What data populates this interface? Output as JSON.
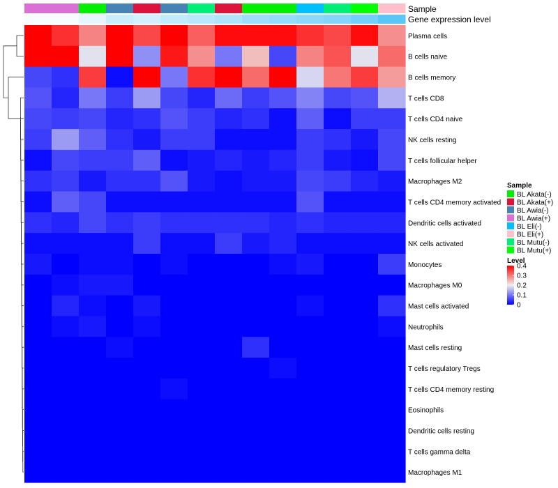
{
  "chart_data": {
    "type": "heatmap",
    "annotation_labels": {
      "sample": "Sample",
      "gene": "Gene expression level"
    },
    "rows": [
      "Plasma cells",
      "B cells naive",
      "B cells memory",
      "T cells CD8",
      "T cells CD4 naive",
      "NK cells resting",
      "T cells follicular helper",
      "Macrophages M2",
      "T cells CD4 memory activated",
      "Dendritic cells activated",
      "NK cells activated",
      "Monocytes",
      "Macrophages M0",
      "Mast cells activated",
      "Neutrophils",
      "Mast cells resting",
      "T cells regulatory  Tregs",
      "T cells CD4 memory resting",
      "Eosinophils",
      "Dendritic cells resting",
      "T cells gamma delta",
      "Macrophages M1"
    ],
    "columns": [
      {
        "sample": "BL Awia(+)",
        "gene_level": 0.05
      },
      {
        "sample": "BL Awia(+)",
        "gene_level": 0.05
      },
      {
        "sample": "BL Akata(-)",
        "gene_level": 0.15
      },
      {
        "sample": "BL Awia(-)",
        "gene_level": 0.3
      },
      {
        "sample": "BL Akata(+)",
        "gene_level": 0.25
      },
      {
        "sample": "BL Awia(-)",
        "gene_level": 0.35
      },
      {
        "sample": "BL Mutu(-)",
        "gene_level": 0.4
      },
      {
        "sample": "BL Akata(+)",
        "gene_level": 0.45
      },
      {
        "sample": "BL Akata(-)",
        "gene_level": 0.55
      },
      {
        "sample": "BL Akata(-)",
        "gene_level": 0.6
      },
      {
        "sample": "BL Eli(-)",
        "gene_level": 0.65
      },
      {
        "sample": "BL Mutu(-)",
        "gene_level": 0.7
      },
      {
        "sample": "BL Mutu(+)",
        "gene_level": 0.8
      },
      {
        "sample": "BL Eli(+)",
        "gene_level": 0.95
      }
    ],
    "values": [
      [
        0.4,
        0.36,
        0.29,
        0.41,
        0.34,
        0.4,
        0.32,
        0.39,
        0.39,
        0.39,
        0.36,
        0.34,
        0.39,
        0.28
      ],
      [
        0.42,
        0.42,
        0.19,
        0.43,
        0.12,
        0.38,
        0.28,
        0.1,
        0.24,
        0.06,
        0.29,
        0.33,
        0.19,
        0.31
      ],
      [
        0.06,
        0.04,
        0.35,
        0.01,
        0.4,
        0.1,
        0.36,
        0.42,
        0.31,
        0.43,
        0.18,
        0.3,
        0.35,
        0.27
      ],
      [
        0.07,
        0.03,
        0.1,
        0.05,
        0.13,
        0.06,
        0.03,
        0.09,
        0.05,
        0.07,
        0.11,
        0.06,
        0.07,
        0.15
      ],
      [
        0.06,
        0.05,
        0.06,
        0.03,
        0.04,
        0.07,
        0.05,
        0.03,
        0.04,
        0.01,
        0.08,
        0.01,
        0.05,
        0.05
      ],
      [
        0.05,
        0.13,
        0.08,
        0.04,
        0.02,
        0.05,
        0.05,
        0.01,
        0.01,
        0.01,
        0.05,
        0.04,
        0.02,
        0.06
      ],
      [
        0.01,
        0.06,
        0.05,
        0.05,
        0.08,
        0.01,
        0.02,
        0.03,
        0.02,
        0.03,
        0.05,
        0.02,
        0.01,
        0.06
      ],
      [
        0.04,
        0.05,
        0.02,
        0.04,
        0.04,
        0.07,
        0.02,
        0.01,
        0.02,
        0.02,
        0.06,
        0.05,
        0.03,
        0.02
      ],
      [
        0.01,
        0.08,
        0.06,
        0.01,
        0.01,
        0.01,
        0.01,
        0.01,
        0.01,
        0.01,
        0.07,
        0.01,
        0.01,
        0.01
      ],
      [
        0.04,
        0.03,
        0.06,
        0.04,
        0.05,
        0.04,
        0.04,
        0.04,
        0.04,
        0.03,
        0.04,
        0.03,
        0.03,
        0.03
      ],
      [
        0.01,
        0.01,
        0.01,
        0.01,
        0.05,
        0.01,
        0.01,
        0.05,
        0.02,
        0.03,
        0.01,
        0.01,
        0.01,
        0.01
      ],
      [
        0.02,
        0.0,
        0.01,
        0.01,
        0.0,
        0.01,
        0.0,
        0.0,
        0.0,
        0.01,
        0.02,
        0.0,
        0.0,
        0.05
      ],
      [
        0.0,
        0.01,
        0.02,
        0.02,
        0.0,
        0.0,
        0.0,
        0.0,
        0.0,
        0.0,
        0.0,
        0.0,
        0.0,
        0.0
      ],
      [
        0.0,
        0.03,
        0.01,
        0.0,
        0.02,
        0.0,
        0.0,
        0.0,
        0.0,
        0.0,
        0.01,
        0.0,
        0.0,
        0.04
      ],
      [
        0.0,
        0.01,
        0.02,
        0.0,
        0.01,
        0.0,
        0.0,
        0.0,
        0.0,
        0.0,
        0.0,
        0.0,
        0.0,
        0.01
      ],
      [
        0.0,
        0.0,
        0.0,
        0.01,
        0.0,
        0.0,
        0.0,
        0.0,
        0.04,
        0.0,
        0.0,
        0.0,
        0.0,
        0.0
      ],
      [
        0.0,
        0.0,
        0.0,
        0.0,
        0.0,
        0.0,
        0.0,
        0.0,
        0.0,
        0.01,
        0.0,
        0.0,
        0.0,
        0.0
      ],
      [
        0.0,
        0.0,
        0.0,
        0.0,
        0.0,
        0.01,
        0.0,
        0.0,
        0.0,
        0.0,
        0.0,
        0.0,
        0.0,
        0.0
      ],
      [
        0.0,
        0.0,
        0.0,
        0.0,
        0.0,
        0.0,
        0.0,
        0.0,
        0.0,
        0.0,
        0.0,
        0.0,
        0.0,
        0.0
      ],
      [
        0.0,
        0.0,
        0.0,
        0.0,
        0.0,
        0.0,
        0.0,
        0.0,
        0.0,
        0.0,
        0.0,
        0.0,
        0.0,
        0.0
      ],
      [
        0.0,
        0.0,
        0.0,
        0.0,
        0.0,
        0.0,
        0.0,
        0.0,
        0.0,
        0.0,
        0.0,
        0.0,
        0.0,
        0.0
      ],
      [
        0.0,
        0.0,
        0.0,
        0.0,
        0.0,
        0.0,
        0.0,
        0.0,
        0.0,
        0.0,
        0.0,
        0.0,
        0.0,
        0.0
      ]
    ],
    "color_scale": {
      "low": "#0000FF",
      "mid": "#EEEEEE",
      "high": "#FF0000",
      "min": 0,
      "mid_value": 0.2,
      "max": 0.4
    },
    "legend_sample": {
      "title": "Sample",
      "items": [
        {
          "label": "BL Akata(-)",
          "color": "#00EE00"
        },
        {
          "label": "BL Akata(+)",
          "color": "#DC143C"
        },
        {
          "label": "BL Awia(-)",
          "color": "#4682B4"
        },
        {
          "label": "BL Awia(+)",
          "color": "#DA70D6"
        },
        {
          "label": "BL Eli(-)",
          "color": "#00BFFF"
        },
        {
          "label": "BL Eli(+)",
          "color": "#FFC0CB"
        },
        {
          "label": "BL Mutu(-)",
          "color": "#00EE76"
        },
        {
          "label": "BL Mutu(+)",
          "color": "#00FF00"
        }
      ]
    },
    "legend_level": {
      "title": "Level",
      "ticks": [
        "0.4",
        "0.3",
        "0.2",
        "0.1",
        "0"
      ]
    },
    "gene_level_colors": {
      "low": "#FFFFFF",
      "high": "#4FC3F7"
    }
  }
}
